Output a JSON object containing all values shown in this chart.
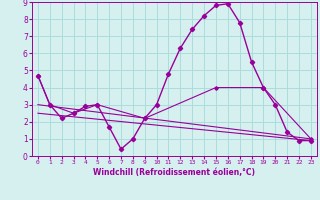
{
  "xlabel": "Windchill (Refroidissement éolien,°C)",
  "background_color": "#d6f0f0",
  "grid_color": "#aadddd",
  "line_color": "#990099",
  "xlim": [
    -0.5,
    23.5
  ],
  "ylim": [
    0,
    9
  ],
  "xticks": [
    0,
    1,
    2,
    3,
    4,
    5,
    6,
    7,
    8,
    9,
    10,
    11,
    12,
    13,
    14,
    15,
    16,
    17,
    18,
    19,
    20,
    21,
    22,
    23
  ],
  "yticks": [
    0,
    1,
    2,
    3,
    4,
    5,
    6,
    7,
    8,
    9
  ],
  "line1_x": [
    0,
    1,
    2,
    3,
    4,
    5,
    6,
    7,
    8,
    9,
    10,
    11,
    12,
    13,
    14,
    15,
    16,
    17,
    18,
    19,
    20,
    21,
    22,
    23
  ],
  "line1_y": [
    4.7,
    3.0,
    2.2,
    2.5,
    2.9,
    3.0,
    1.7,
    0.4,
    1.0,
    2.2,
    3.0,
    4.8,
    6.3,
    7.4,
    8.2,
    8.8,
    8.9,
    7.8,
    5.5,
    4.0,
    3.0,
    1.4,
    0.9,
    0.9
  ],
  "line2_x": [
    0,
    1,
    3,
    5,
    9,
    15,
    19,
    23
  ],
  "line2_y": [
    4.7,
    3.0,
    2.5,
    3.0,
    2.2,
    4.0,
    4.0,
    1.0
  ],
  "line3_x": [
    0,
    23
  ],
  "line3_y": [
    3.0,
    1.0
  ],
  "line4_x": [
    0,
    23
  ],
  "line4_y": [
    2.5,
    0.9
  ]
}
